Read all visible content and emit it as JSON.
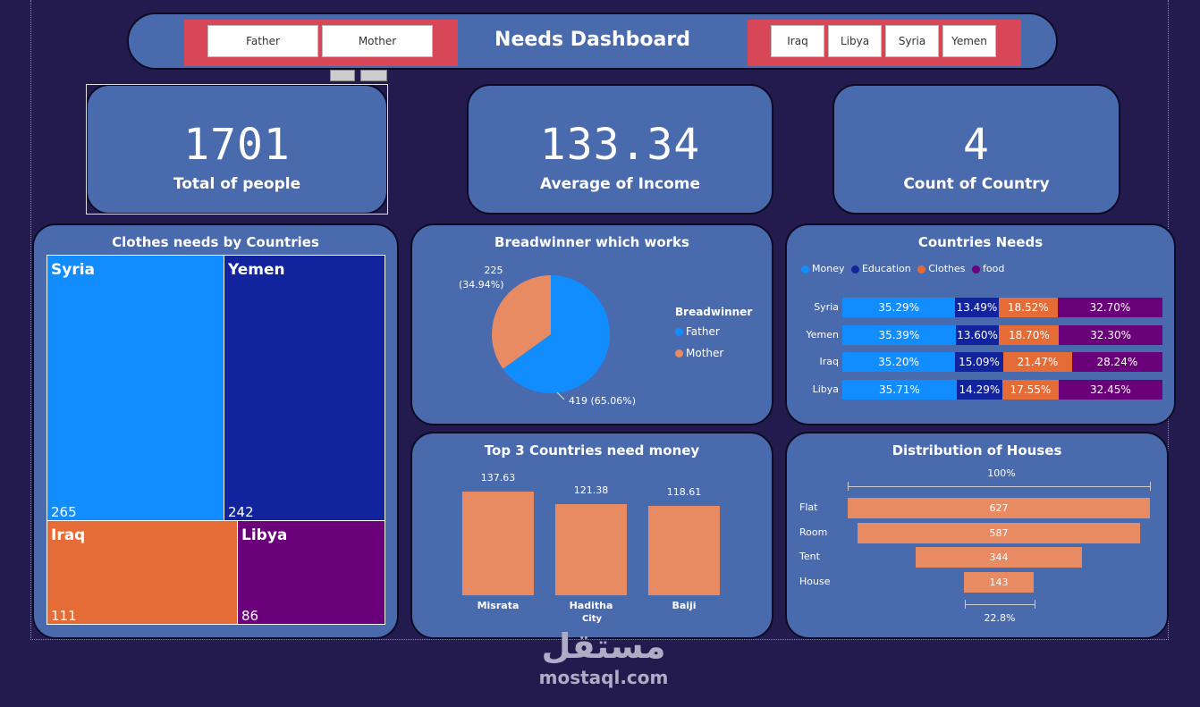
{
  "header": {
    "title": "Needs Dashboard",
    "breadwinner_slicer": [
      "Father",
      "Mother"
    ],
    "country_slicer": [
      "Iraq",
      "Libya",
      "Syria",
      "Yemen"
    ]
  },
  "kpis": [
    {
      "value": "1701",
      "label": "Total of people"
    },
    {
      "value": "133.34",
      "label": "Average of Income"
    },
    {
      "value": "4",
      "label": "Count of Country"
    }
  ],
  "colors": {
    "syria": "#118dff",
    "yemen": "#12239e",
    "iraq": "#e66c37",
    "libya": "#6b007b",
    "money": "#e88a62",
    "background": "#231a4e",
    "panel": "#4a6aae"
  },
  "treemap": {
    "title": "Clothes needs by Countries",
    "items": [
      {
        "name": "Syria",
        "value": "265"
      },
      {
        "name": "Yemen",
        "value": "242"
      },
      {
        "name": "Iraq",
        "value": "111"
      },
      {
        "name": "Libya",
        "value": "86"
      }
    ]
  },
  "pie": {
    "title": "Breadwinner which works",
    "legend_title": "Breadwinner",
    "legend": [
      "Father",
      "Mother"
    ],
    "label_mother_count": "225",
    "label_mother_pct": "(34.94%)",
    "label_father": "419 (65.06%)"
  },
  "needs": {
    "title": "Countries Needs",
    "legend": [
      "Money",
      "Education",
      "Clothes",
      "food"
    ],
    "rows": [
      {
        "country": "Syria",
        "values": [
          "35.29%",
          "13.49%",
          "18.52%",
          "32.70%"
        ]
      },
      {
        "country": "Yemen",
        "values": [
          "35.39%",
          "13.60%",
          "18.70%",
          "32.30%"
        ]
      },
      {
        "country": "Iraq",
        "values": [
          "35.20%",
          "15.09%",
          "21.47%",
          "28.24%"
        ]
      },
      {
        "country": "Libya",
        "values": [
          "35.71%",
          "14.29%",
          "17.55%",
          "32.45%"
        ]
      }
    ]
  },
  "money": {
    "title": "Top 3 Countries need money",
    "xlabel": "City",
    "labels": [
      "137.63",
      "121.38",
      "118.61"
    ],
    "cities": [
      "Misrata",
      "Haditha",
      "Baiji"
    ]
  },
  "houses": {
    "title": "Distribution of Houses",
    "top_pct": "100%",
    "bottom_pct": "22.8%",
    "labels": [
      "627",
      "587",
      "344",
      "143"
    ],
    "types": [
      "Flat",
      "Room",
      "Tent",
      "House"
    ]
  },
  "chart_data": [
    {
      "type": "treemap",
      "title": "Clothes needs by Countries",
      "categories": [
        "Syria",
        "Yemen",
        "Iraq",
        "Libya"
      ],
      "values": [
        265,
        242,
        111,
        86
      ]
    },
    {
      "type": "pie",
      "title": "Breadwinner which works",
      "categories": [
        "Father",
        "Mother"
      ],
      "values": [
        419,
        225
      ],
      "percent": [
        65.06,
        34.94
      ],
      "legend_title": "Breadwinner"
    },
    {
      "type": "bar",
      "stacked": true,
      "percent": true,
      "title": "Countries Needs",
      "categories": [
        "Syria",
        "Yemen",
        "Iraq",
        "Libya"
      ],
      "series": [
        {
          "name": "Money",
          "values": [
            35.29,
            35.39,
            35.2,
            35.71
          ]
        },
        {
          "name": "Education",
          "values": [
            13.49,
            13.6,
            15.09,
            14.29
          ]
        },
        {
          "name": "Clothes",
          "values": [
            18.52,
            18.7,
            21.47,
            17.55
          ]
        },
        {
          "name": "food",
          "values": [
            32.7,
            32.3,
            28.24,
            32.45
          ]
        }
      ]
    },
    {
      "type": "bar",
      "title": "Top 3 Countries need money",
      "xlabel": "City",
      "categories": [
        "Misrata",
        "Haditha",
        "Baiji"
      ],
      "values": [
        137.63,
        121.38,
        118.61
      ]
    },
    {
      "type": "funnel",
      "title": "Distribution of Houses",
      "categories": [
        "Flat",
        "Room",
        "Tent",
        "House"
      ],
      "values": [
        627,
        587,
        344,
        143
      ],
      "top_percent": "100%",
      "bottom_percent": "22.8%"
    }
  ],
  "watermark": {
    "arabic": "مستقل",
    "latin": "mostaql.com"
  }
}
